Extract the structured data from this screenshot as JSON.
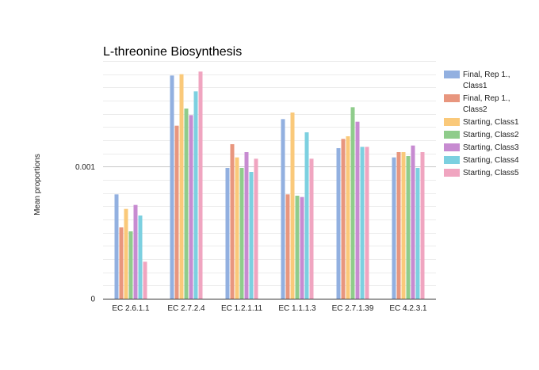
{
  "chart_data": {
    "type": "bar",
    "title": "L-threonine Biosynthesis",
    "ylabel": "Mean proportions",
    "xlabel": "",
    "ylim": [
      0,
      0.0018
    ],
    "yticks": [
      {
        "value": 0,
        "label": "0"
      },
      {
        "value": 0.001,
        "label": "0.001"
      }
    ],
    "minor_grid_step": 0.0001,
    "grid": true,
    "legend_position": "right",
    "categories": [
      "EC 2.6.1.1",
      "EC 2.7.2.4",
      "EC 1.2.1.11",
      "EC 1.1.1.3",
      "EC 2.7.1.39",
      "EC 4.2.3.1"
    ],
    "series": [
      {
        "name": "Final, Rep 1., Class1",
        "legend_lines": [
          "Final, Rep 1.,",
          "Class1"
        ],
        "color": "#92b0e0",
        "values": [
          0.00079,
          0.00169,
          0.00099,
          0.00136,
          0.00114,
          0.00107
        ]
      },
      {
        "name": "Final, Rep 1., Class2",
        "legend_lines": [
          "Final, Rep 1.,",
          "Class2"
        ],
        "color": "#e8967e",
        "values": [
          0.00054,
          0.00131,
          0.00117,
          0.00079,
          0.00121,
          0.00111
        ]
      },
      {
        "name": "Starting, Class1",
        "legend_lines": [
          "Starting, Class1"
        ],
        "color": "#fac97a",
        "values": [
          0.00068,
          0.0017,
          0.00107,
          0.00141,
          0.00123,
          0.00111
        ]
      },
      {
        "name": "Starting, Class2",
        "legend_lines": [
          "Starting, Class2"
        ],
        "color": "#8fcc8b",
        "values": [
          0.00051,
          0.00144,
          0.00099,
          0.00078,
          0.00145,
          0.00108
        ]
      },
      {
        "name": "Starting, Class3",
        "legend_lines": [
          "Starting, Class3"
        ],
        "color": "#c78bd1",
        "values": [
          0.00071,
          0.00139,
          0.00111,
          0.00077,
          0.00134,
          0.00116
        ]
      },
      {
        "name": "Starting, Class4",
        "legend_lines": [
          "Starting, Class4"
        ],
        "color": "#7cd0e0",
        "values": [
          0.00063,
          0.00157,
          0.00096,
          0.00126,
          0.00115,
          0.00099
        ]
      },
      {
        "name": "Starting, Class5",
        "legend_lines": [
          "Starting, Class5"
        ],
        "color": "#f0a5c0",
        "values": [
          0.00028,
          0.00172,
          0.00106,
          0.00106,
          0.00115,
          0.00111
        ]
      }
    ]
  }
}
